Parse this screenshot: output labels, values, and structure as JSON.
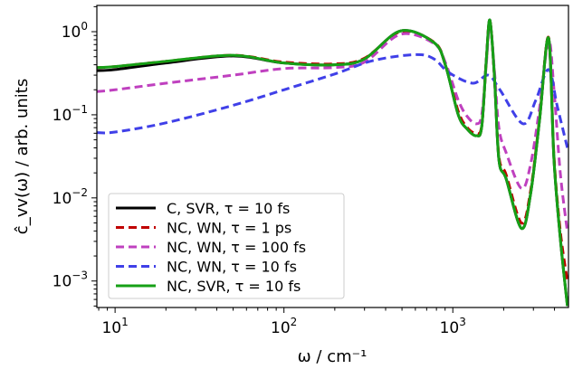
{
  "chart_data": {
    "type": "line",
    "title": "",
    "xlabel": "ω / cm⁻¹",
    "ylabel": "ĉ_vv(ω) / arb. units",
    "xscale": "log",
    "yscale": "log",
    "xlim": [
      7.8,
      4840
    ],
    "ylim": [
      0.00048,
      2.07
    ],
    "xticks": [
      {
        "value": 10,
        "label": "10",
        "exp": "1"
      },
      {
        "value": 100,
        "label": "10",
        "exp": "2"
      },
      {
        "value": 1000,
        "label": "10",
        "exp": "3"
      }
    ],
    "yticks": [
      {
        "value": 1,
        "label": "10",
        "exp": "0"
      },
      {
        "value": 0.1,
        "label": "10",
        "exp": "−1"
      },
      {
        "value": 0.01,
        "label": "10",
        "exp": "−2"
      },
      {
        "value": 0.001,
        "label": "10",
        "exp": "−3"
      }
    ],
    "grid": false,
    "legend_position": "lower-left",
    "series": [
      {
        "name": "C, SVR, τ = 10 fs",
        "color": "#000000",
        "dash": "solid",
        "x": [
          7.8,
          10,
          20,
          50,
          100,
          200,
          300,
          490,
          773,
          906,
          1077,
          1219,
          1378,
          1483,
          1578,
          1657,
          1762,
          1874,
          2069,
          2548,
          2884,
          3261,
          3690,
          3972,
          4328,
          4770
        ],
        "y": [
          0.34,
          0.35,
          0.42,
          0.51,
          0.42,
          0.4,
          0.47,
          1.02,
          0.74,
          0.39,
          0.1,
          0.067,
          0.056,
          0.072,
          0.45,
          1.38,
          0.3,
          0.029,
          0.017,
          0.0043,
          0.011,
          0.086,
          0.84,
          0.029,
          0.0033,
          0.0005
        ]
      },
      {
        "name": "NC, WN, τ = 1 ps",
        "color": "#c00000",
        "dash": "dashed",
        "x": [
          7.8,
          10,
          20,
          50,
          100,
          200,
          300,
          490,
          773,
          906,
          1077,
          1219,
          1378,
          1483,
          1578,
          1657,
          1762,
          1874,
          2069,
          2548,
          2884,
          3261,
          3690,
          3972,
          4328,
          4770
        ],
        "y": [
          0.37,
          0.38,
          0.44,
          0.52,
          0.43,
          0.41,
          0.48,
          1.0,
          0.75,
          0.4,
          0.11,
          0.07,
          0.06,
          0.075,
          0.45,
          1.35,
          0.3,
          0.032,
          0.019,
          0.005,
          0.012,
          0.09,
          0.85,
          0.032,
          0.004,
          0.001
        ]
      },
      {
        "name": "NC, WN, τ = 100 fs",
        "color": "#bf40bf",
        "dash": "dashed",
        "x": [
          7.8,
          10,
          20,
          50,
          100,
          200,
          300,
          490,
          773,
          906,
          1077,
          1219,
          1378,
          1483,
          1578,
          1657,
          1762,
          1874,
          2069,
          2548,
          2884,
          3261,
          3690,
          3972,
          4328,
          4770
        ],
        "y": [
          0.19,
          0.2,
          0.24,
          0.3,
          0.36,
          0.37,
          0.43,
          0.93,
          0.72,
          0.42,
          0.15,
          0.095,
          0.078,
          0.1,
          0.4,
          1.25,
          0.35,
          0.07,
          0.035,
          0.013,
          0.025,
          0.12,
          0.78,
          0.2,
          0.02,
          0.0039
        ]
      },
      {
        "name": "NC, WN, τ = 10 fs",
        "color": "#4040e8",
        "dash": "dashed",
        "x": [
          7.8,
          10,
          20,
          50,
          100,
          200,
          338,
          603,
          773,
          952,
          1311,
          1620,
          1900,
          2600,
          3100,
          3690,
          4150,
          4770
        ],
        "y": [
          0.061,
          0.062,
          0.08,
          0.13,
          0.2,
          0.31,
          0.45,
          0.53,
          0.47,
          0.32,
          0.24,
          0.3,
          0.2,
          0.078,
          0.15,
          0.35,
          0.128,
          0.04
        ]
      },
      {
        "name": "NC, SVR, τ = 10 fs",
        "color": "#16a016",
        "dash": "solid",
        "x": [
          7.8,
          10,
          20,
          50,
          100,
          200,
          300,
          490,
          773,
          906,
          1077,
          1219,
          1378,
          1483,
          1578,
          1657,
          1762,
          1874,
          2069,
          2548,
          2884,
          3261,
          3690,
          3972,
          4328,
          4770
        ],
        "y": [
          0.37,
          0.38,
          0.44,
          0.52,
          0.42,
          0.4,
          0.47,
          1.02,
          0.74,
          0.39,
          0.1,
          0.067,
          0.056,
          0.072,
          0.45,
          1.38,
          0.3,
          0.029,
          0.017,
          0.0043,
          0.011,
          0.086,
          0.84,
          0.029,
          0.0033,
          0.0005
        ]
      }
    ]
  }
}
